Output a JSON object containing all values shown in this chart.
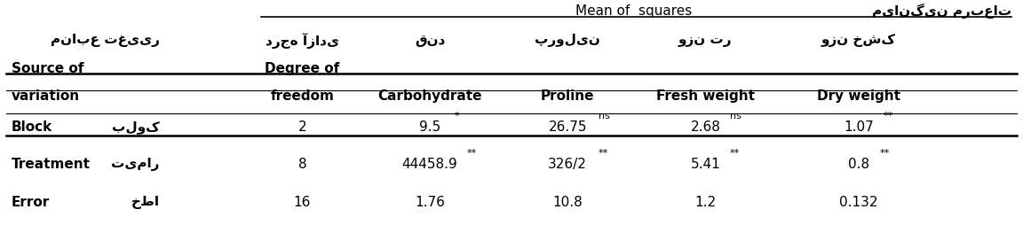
{
  "title_persian": "میانگین مربعات",
  "title_english": "Mean of  squares",
  "col_headers_persian": [
    "منابع تغییر",
    "درجه آزادی",
    "قند",
    "پرولین",
    "وزن تر",
    "وزن خشک"
  ],
  "col_headers_english": [
    "Source of\nvariation",
    "Degree of\nfreedom",
    "Carbohydrate",
    "Proline",
    "Fresh weight",
    "Dry weight"
  ],
  "rows": [
    {
      "src_en": "Block",
      "src_fa": "بلوک",
      "df": "2",
      "carb": "9.5",
      "carb_sup": "*",
      "pro": "26.75",
      "pro_sup": "ns",
      "fw": "2.68",
      "fw_sup": "ns",
      "dw": "1.07",
      "dw_sup": "**"
    },
    {
      "src_en": "Treatment",
      "src_fa": "تیمار",
      "df": "8",
      "carb": "44458.9",
      "carb_sup": "**",
      "pro": "326/2",
      "pro_sup": "**",
      "fw": "5.41",
      "fw_sup": "**",
      "dw": "0.8",
      "dw_sup": "**"
    },
    {
      "src_en": "Error",
      "src_fa": "خطا",
      "df": "16",
      "carb": "1.76",
      "carb_sup": "",
      "pro": "10.8",
      "pro_sup": "",
      "fw": "1.2",
      "fw_sup": "",
      "dw": "0.132",
      "dw_sup": ""
    }
  ],
  "figsize": [
    11.52,
    2.54
  ],
  "dpi": 100,
  "bg_color": "#ffffff",
  "text_color": "#000000",
  "font_size": 11,
  "header_font_size": 11,
  "bold_font_size": 11
}
